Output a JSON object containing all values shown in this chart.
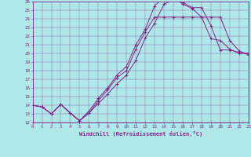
{
  "xlabel": "Windchill (Refroidissement éolien,°C)",
  "xlim": [
    0,
    23
  ],
  "ylim": [
    12,
    26
  ],
  "xticks": [
    0,
    1,
    2,
    3,
    4,
    5,
    6,
    7,
    8,
    9,
    10,
    11,
    12,
    13,
    14,
    15,
    16,
    17,
    18,
    19,
    20,
    21,
    22,
    23
  ],
  "yticks": [
    12,
    13,
    14,
    15,
    16,
    17,
    18,
    19,
    20,
    21,
    22,
    23,
    24,
    25,
    26
  ],
  "background_color": "#aee8e8",
  "line_color": "#882288",
  "curve1_x": [
    0,
    1,
    2,
    3,
    4,
    5,
    6,
    7,
    8,
    9,
    10,
    11,
    12,
    13,
    14,
    15,
    16,
    17,
    18,
    19,
    20,
    21,
    22,
    23
  ],
  "curve1_y": [
    14.0,
    13.8,
    13.0,
    14.1,
    13.1,
    12.2,
    13.1,
    14.2,
    15.3,
    16.5,
    17.5,
    19.2,
    21.8,
    23.5,
    25.7,
    26.2,
    25.9,
    25.3,
    25.3,
    23.2,
    20.4,
    20.4,
    20.1,
    20.0
  ],
  "curve2_x": [
    0,
    1,
    2,
    3,
    4,
    5,
    6,
    7,
    8,
    9,
    10,
    11,
    12,
    13,
    14,
    15,
    16,
    17,
    18,
    19,
    20,
    21,
    22,
    23
  ],
  "curve2_y": [
    14.0,
    13.8,
    13.0,
    14.1,
    13.1,
    12.2,
    13.1,
    14.5,
    15.8,
    17.2,
    18.0,
    20.5,
    22.5,
    24.2,
    24.2,
    24.2,
    24.2,
    24.2,
    24.2,
    24.2,
    24.2,
    21.5,
    20.3,
    19.8
  ],
  "curve3_x": [
    0,
    1,
    2,
    3,
    4,
    5,
    6,
    7,
    8,
    9,
    10,
    11,
    12,
    13,
    14,
    15,
    16,
    17,
    18,
    19,
    20,
    21,
    22,
    23
  ],
  "curve3_y": [
    14.0,
    13.8,
    13.0,
    14.1,
    13.1,
    12.2,
    13.3,
    14.8,
    16.0,
    17.5,
    18.5,
    21.0,
    22.8,
    25.5,
    26.5,
    26.5,
    25.7,
    25.2,
    24.2,
    21.7,
    21.5,
    20.5,
    20.0,
    20.0
  ]
}
